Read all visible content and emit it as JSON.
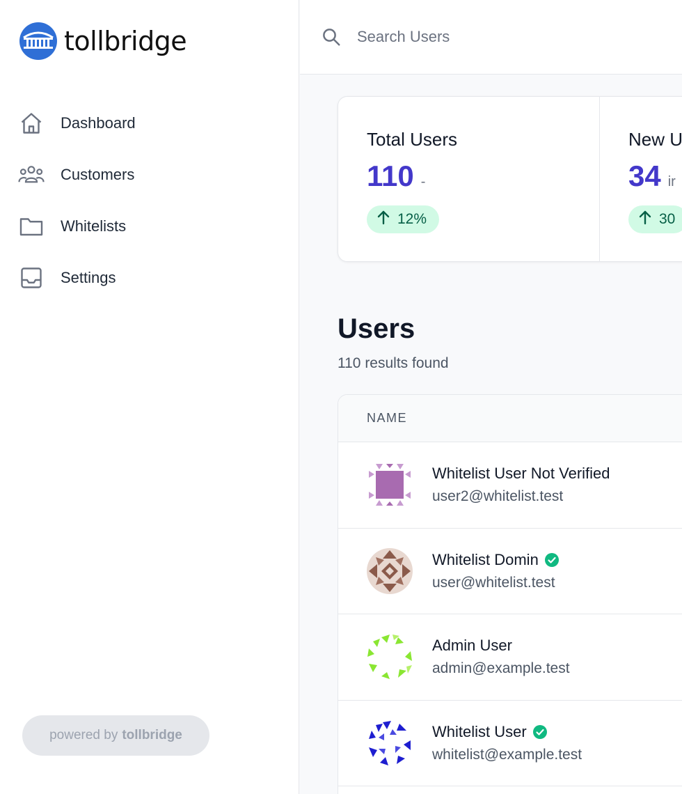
{
  "brand": {
    "name": "tollbridge",
    "color": "#2f6fd6"
  },
  "sidebar": {
    "items": [
      {
        "label": "Dashboard",
        "icon": "home-icon"
      },
      {
        "label": "Customers",
        "icon": "users-icon"
      },
      {
        "label": "Whitelists",
        "icon": "folder-icon"
      },
      {
        "label": "Settings",
        "icon": "inbox-icon"
      }
    ],
    "powered_prefix": "powered by",
    "powered_brand": "tollbridge"
  },
  "search": {
    "placeholder": "Search Users"
  },
  "stats": [
    {
      "title": "Total Users",
      "value": "110",
      "suffix": "-",
      "change": "12%",
      "trend": "up"
    },
    {
      "title": "New U",
      "value": "34",
      "suffix": "ir",
      "change": "30",
      "trend": "up"
    }
  ],
  "users": {
    "title": "Users",
    "count_text": "110 results found",
    "columns": [
      "NAME"
    ],
    "rows": [
      {
        "name": "Whitelist User Not Verified",
        "email": "user2@whitelist.test",
        "verified": false
      },
      {
        "name": "Whitelist Domin",
        "email": "user@whitelist.test",
        "verified": true
      },
      {
        "name": "Admin User",
        "email": "admin@example.test",
        "verified": false
      },
      {
        "name": "Whitelist User",
        "email": "whitelist@example.test",
        "verified": true
      }
    ]
  },
  "colors": {
    "accent": "#4338ca",
    "badge_bg": "#d1fae5",
    "badge_text": "#065f46",
    "verified": "#10b981"
  }
}
